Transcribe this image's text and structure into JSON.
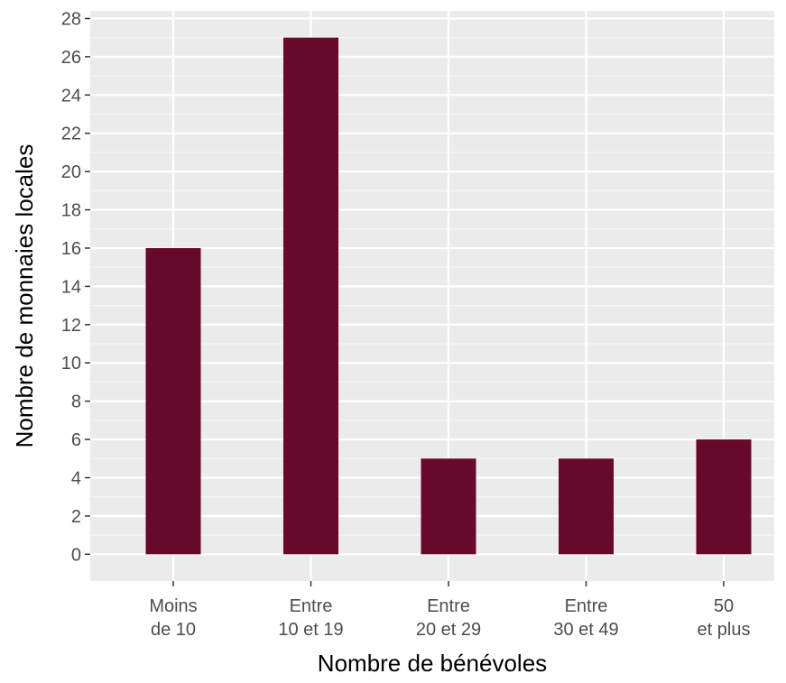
{
  "chart_data": {
    "type": "bar",
    "title": "",
    "xlabel": "Nombre de bénévoles",
    "ylabel": "Nombre de monnaies locales",
    "categories": [
      [
        "Moins",
        "de 10"
      ],
      [
        "Entre",
        "10 et 19"
      ],
      [
        "Entre",
        "20 et 29"
      ],
      [
        "Entre",
        "30 et 49"
      ],
      [
        "50",
        "et plus"
      ]
    ],
    "values": [
      16,
      27,
      5,
      5,
      6
    ],
    "ylim": [
      -1.4,
      28.4
    ],
    "yticks": [
      "0",
      "2",
      "4",
      "6",
      "8",
      "10",
      "12",
      "14",
      "16",
      "18",
      "20",
      "22",
      "24",
      "26",
      "28"
    ],
    "grid": true,
    "legend": "none",
    "colors": {
      "bar": "#67092d",
      "panel_background": "#ebebeb",
      "grid_major": "#ffffff",
      "grid_minor": "#f5f5f5",
      "tick_label": "#4d4d4d",
      "axis_title": "#000000"
    }
  }
}
